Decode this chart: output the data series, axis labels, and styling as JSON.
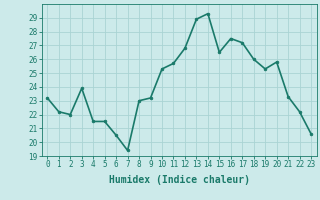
{
  "x": [
    0,
    1,
    2,
    3,
    4,
    5,
    6,
    7,
    8,
    9,
    10,
    11,
    12,
    13,
    14,
    15,
    16,
    17,
    18,
    19,
    20,
    21,
    22,
    23
  ],
  "y": [
    23.2,
    22.2,
    22.0,
    23.9,
    21.5,
    21.5,
    20.5,
    19.4,
    23.0,
    23.2,
    25.3,
    25.7,
    26.8,
    28.9,
    29.3,
    26.5,
    27.5,
    27.2,
    26.0,
    25.3,
    25.8,
    23.3,
    22.2,
    20.6
  ],
  "line_color": "#1a7a6a",
  "marker": "o",
  "marker_size": 2,
  "bg_color": "#cceaea",
  "grid_color": "#aad4d4",
  "xlabel": "Humidex (Indice chaleur)",
  "ylim": [
    19,
    30
  ],
  "xlim": [
    -0.5,
    23.5
  ],
  "yticks": [
    19,
    20,
    21,
    22,
    23,
    24,
    25,
    26,
    27,
    28,
    29
  ],
  "xticks": [
    0,
    1,
    2,
    3,
    4,
    5,
    6,
    7,
    8,
    9,
    10,
    11,
    12,
    13,
    14,
    15,
    16,
    17,
    18,
    19,
    20,
    21,
    22,
    23
  ],
  "tick_fontsize": 5.5,
  "label_fontsize": 7,
  "line_width": 1.2
}
